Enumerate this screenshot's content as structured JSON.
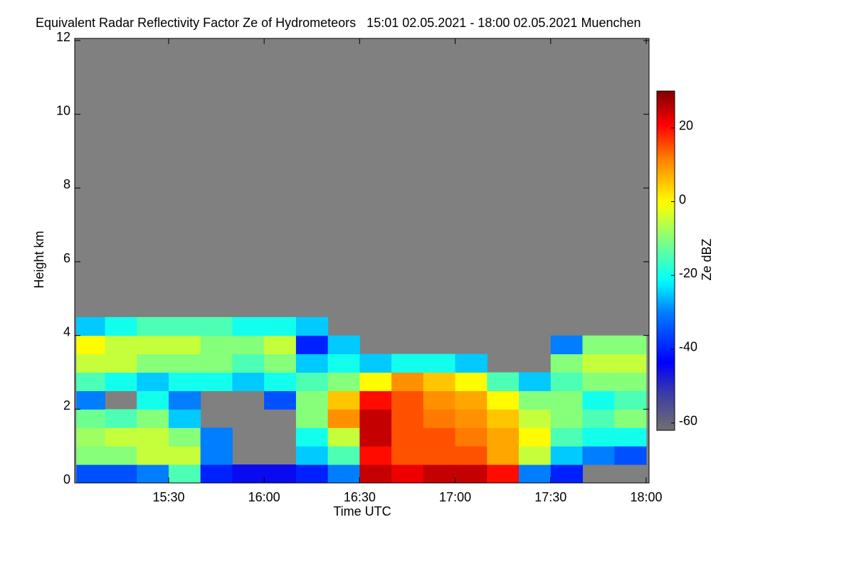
{
  "chart_data": {
    "type": "heatmap",
    "title": "Equivalent Radar Reflectivity Factor Ze of Hydrometeors   15:01 02.05.2021 - 18:00 02.05.2021 Muenchen",
    "xlabel": "Time UTC",
    "ylabel": "Height km",
    "colorbar_label": "Ze dBZ",
    "xlim": [
      900.5,
      1080.9
    ],
    "ylim": [
      0,
      12
    ],
    "zlim": [
      -62,
      30
    ],
    "xticks": [
      {
        "value": 930,
        "label": "15:30"
      },
      {
        "value": 960,
        "label": "16:00"
      },
      {
        "value": 990,
        "label": "16:30"
      },
      {
        "value": 1020,
        "label": "17:00"
      },
      {
        "value": 1050,
        "label": "17:30"
      },
      {
        "value": 1080,
        "label": "18:00"
      }
    ],
    "yticks": [
      0,
      2,
      4,
      6,
      8,
      10,
      12
    ],
    "zticks": [
      -60,
      -40,
      -20,
      0,
      20
    ],
    "colormap": "jet",
    "background": "#808080",
    "x_edges": [
      901,
      910,
      920,
      930,
      940,
      950,
      960,
      970,
      980,
      990,
      1000,
      1010,
      1020,
      1030,
      1040,
      1050,
      1060,
      1070,
      1080
    ],
    "y_edges": [
      0,
      0.5,
      1,
      1.5,
      2,
      2.5,
      3,
      3.5,
      4,
      4.5,
      5
    ],
    "z": [
      [
        -35,
        -10,
        -8,
        -12,
        -30,
        -15,
        -5,
        0,
        -25,
        null
      ],
      [
        -35,
        -10,
        -5,
        -15,
        null,
        -20,
        -5,
        -5,
        -20,
        null
      ],
      [
        -30,
        -5,
        -5,
        -10,
        -20,
        -25,
        -10,
        -5,
        -15,
        null
      ],
      [
        -15,
        -5,
        -10,
        -25,
        -30,
        -20,
        -10,
        -5,
        -15,
        null
      ],
      [
        -40,
        -30,
        -30,
        null,
        null,
        -20,
        -10,
        -10,
        -15,
        null
      ],
      [
        -45,
        null,
        null,
        null,
        null,
        -25,
        -15,
        -10,
        -20,
        null
      ],
      [
        -45,
        null,
        null,
        null,
        -35,
        -20,
        -10,
        -5,
        -20,
        null
      ],
      [
        -40,
        -25,
        -20,
        -10,
        -10,
        -15,
        -25,
        -40,
        -25,
        null
      ],
      [
        -30,
        -15,
        -5,
        10,
        5,
        -10,
        -20,
        -25,
        null,
        null
      ],
      [
        25,
        20,
        25,
        25,
        20,
        0,
        -25,
        null,
        null,
        null
      ],
      [
        22,
        15,
        15,
        15,
        15,
        10,
        -20,
        null,
        null,
        null
      ],
      [
        25,
        15,
        15,
        12,
        10,
        5,
        -20,
        null,
        null,
        null
      ],
      [
        25,
        15,
        12,
        10,
        8,
        0,
        -25,
        null,
        null,
        null
      ],
      [
        20,
        8,
        8,
        5,
        0,
        -15,
        null,
        null,
        null,
        null
      ],
      [
        -30,
        -5,
        0,
        -5,
        -10,
        -25,
        null,
        null,
        null,
        null
      ],
      [
        -40,
        -25,
        -15,
        -10,
        -10,
        -15,
        -10,
        -30,
        null,
        null
      ],
      [
        null,
        -30,
        -20,
        -15,
        -20,
        -10,
        -5,
        -10,
        null,
        null
      ],
      [
        null,
        -35,
        -20,
        -10,
        -15,
        -10,
        -5,
        -10,
        null,
        null
      ]
    ]
  }
}
